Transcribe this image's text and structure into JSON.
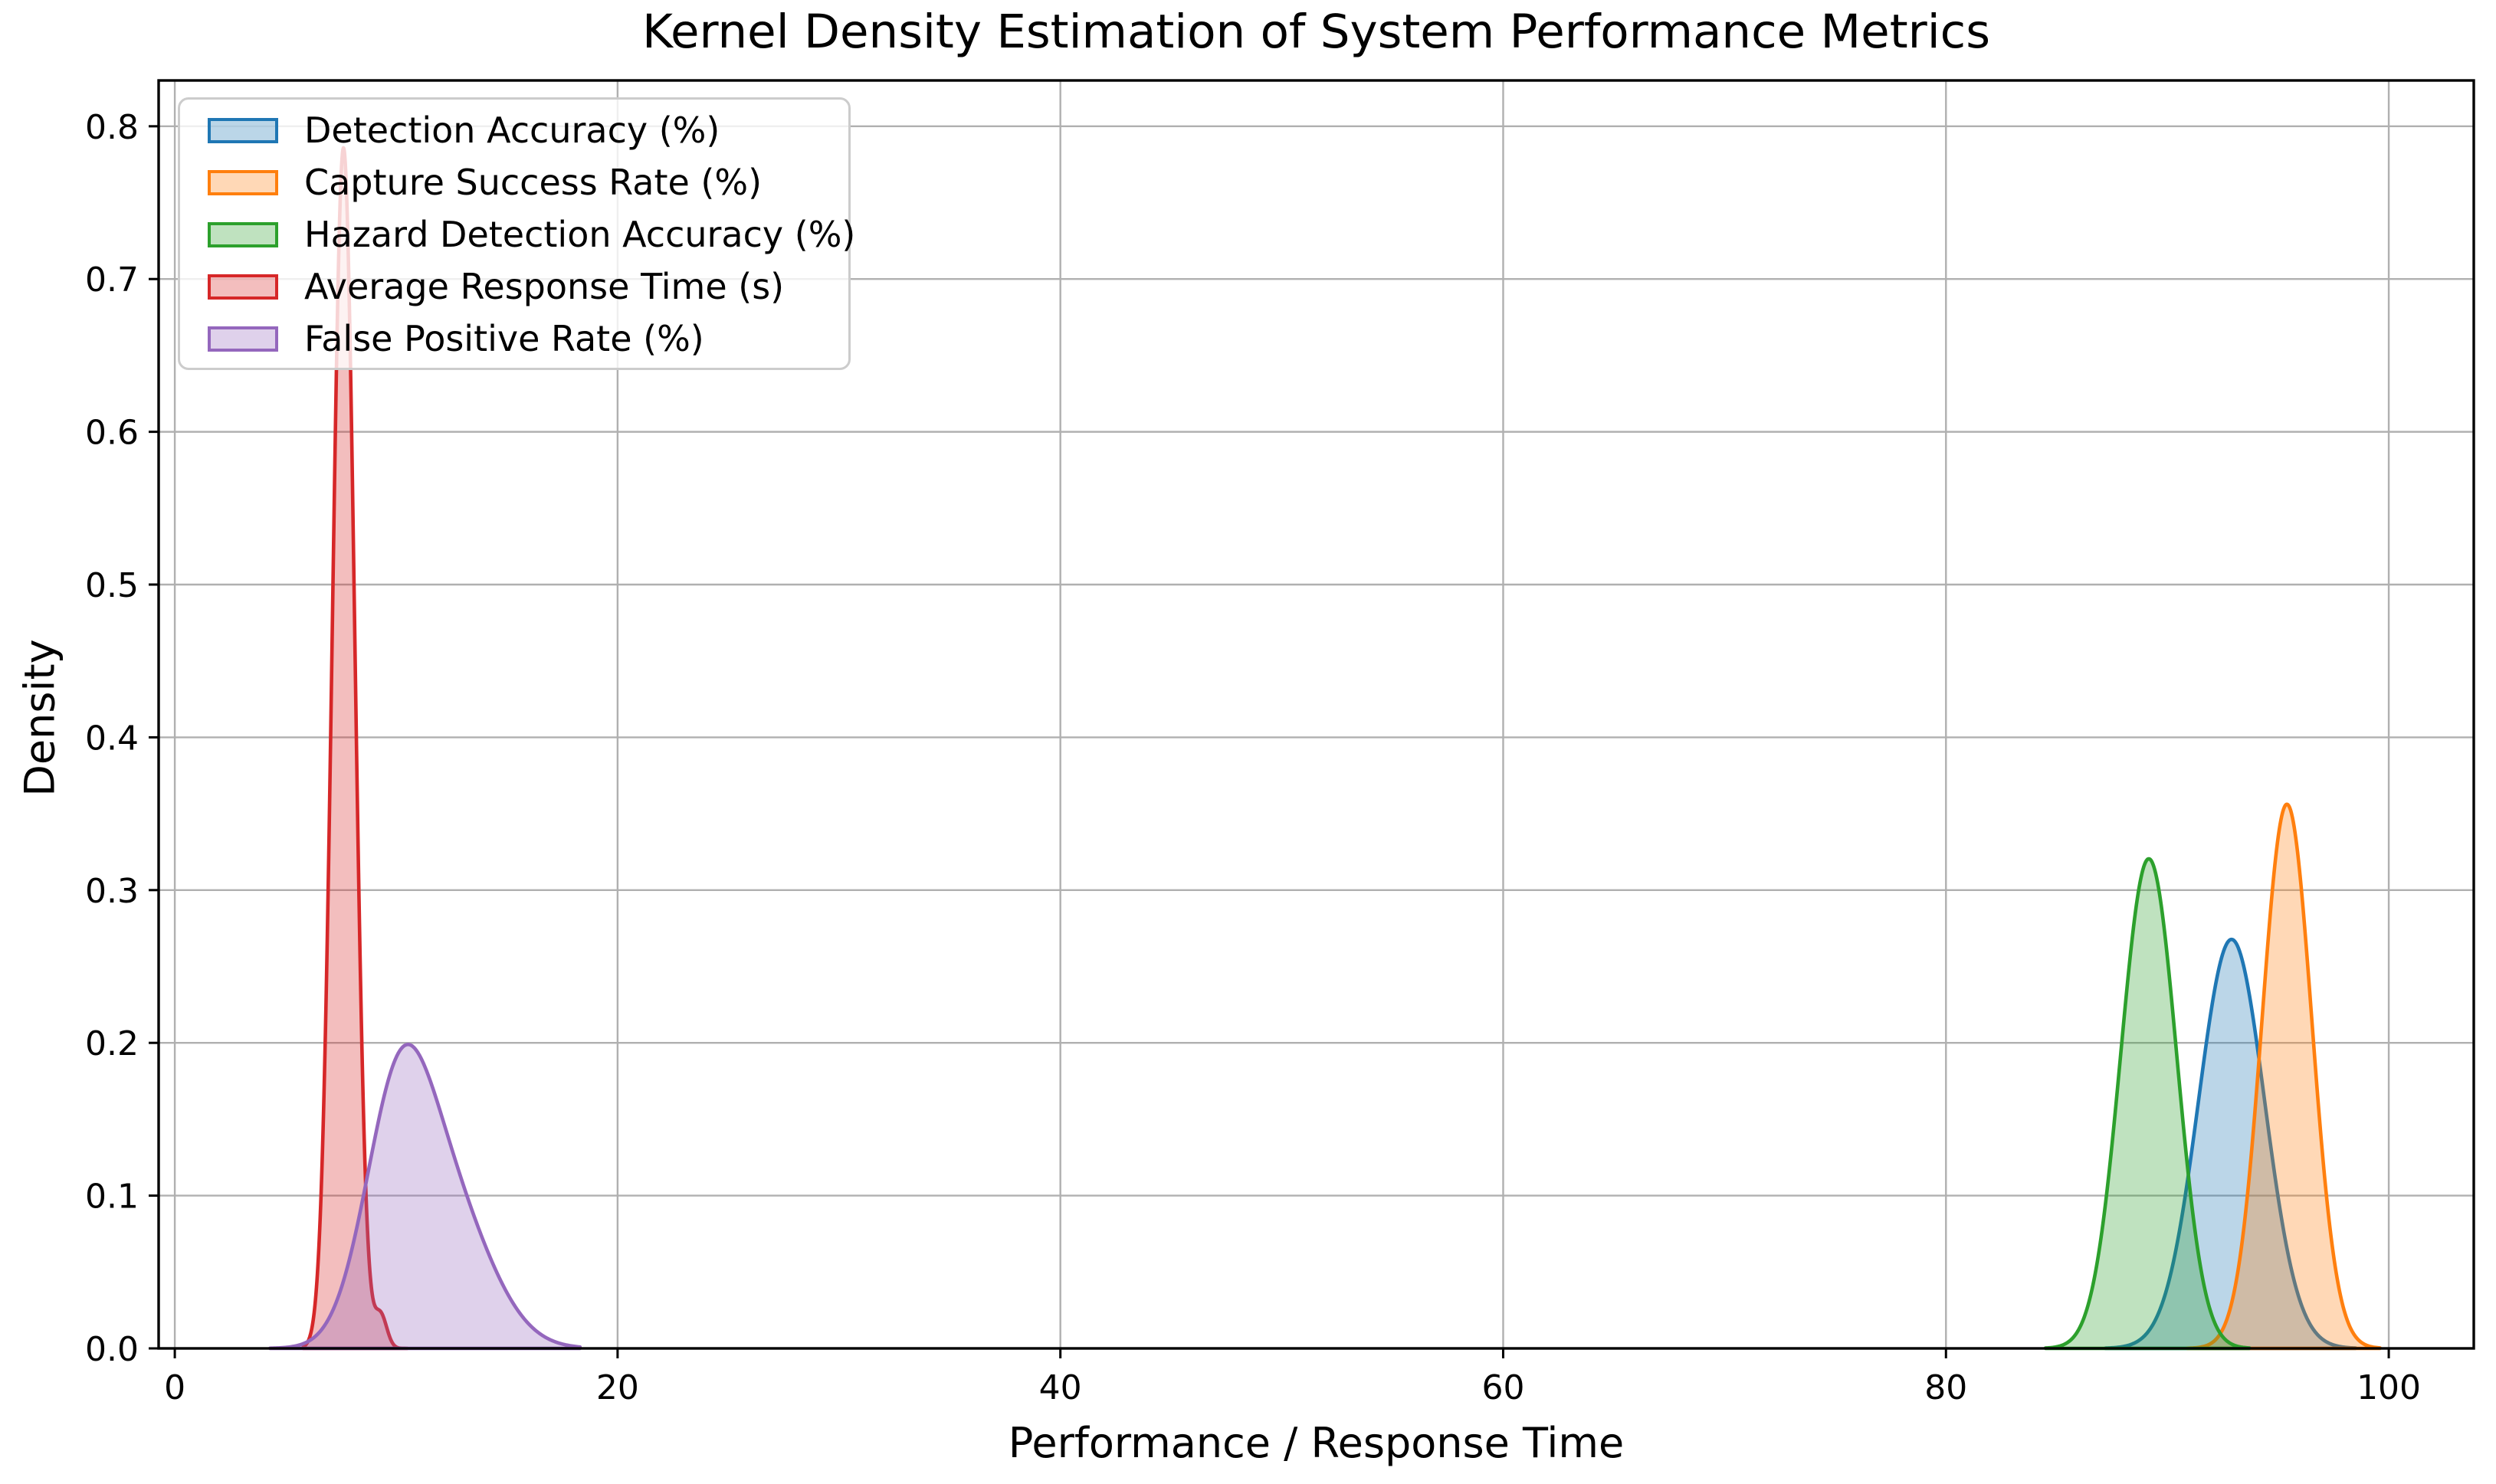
{
  "chart_data": {
    "type": "area",
    "subtype": "kde",
    "title": "Kernel Density Estimation of System Performance Metrics",
    "xlabel": "Performance / Response Time",
    "ylabel": "Density",
    "xlim": [
      -0.73,
      103.84
    ],
    "ylim": [
      0,
      0.83
    ],
    "xticks": {
      "values": [
        0,
        20,
        40,
        60,
        80,
        100
      ],
      "labels": [
        "0",
        "20",
        "40",
        "60",
        "80",
        "100"
      ]
    },
    "yticks": {
      "values": [
        0,
        0.1,
        0.2,
        0.3,
        0.4,
        0.5,
        0.6,
        0.7,
        0.8
      ],
      "labels": [
        "0.0",
        "0.1",
        "0.2",
        "0.3",
        "0.4",
        "0.5",
        "0.6",
        "0.7",
        "0.8"
      ]
    },
    "grid": true,
    "grid_color": "#b0b0b0",
    "axis_color": "#000000",
    "background_color": "#ffffff",
    "legend_position": "upper left",
    "fill_alpha": 0.3,
    "series": [
      {
        "name": "Detection Accuracy (%)",
        "color": "#1f77b4",
        "peak": {
          "x": 92.9,
          "density": 0.263
        },
        "range": [
          87.2,
          98.5
        ],
        "components": [
          {
            "mean": 92.9,
            "sigma": 1.49,
            "weight": 1.0
          }
        ]
      },
      {
        "name": "Capture Success Rate (%)",
        "color": "#ff7f0e",
        "peak": {
          "x": 95.4,
          "density": 0.358
        },
        "range": [
          90.9,
          99.6
        ],
        "components": [
          {
            "mean": 95.4,
            "sigma": 1.12,
            "weight": 1.0
          }
        ]
      },
      {
        "name": "Hazard Detection Accuracy (%)",
        "color": "#2ca02c",
        "peak": {
          "x": 89.1,
          "density": 0.31
        },
        "range": [
          84.5,
          93.7
        ],
        "components": [
          {
            "mean": 88.6,
            "sigma": 1.13,
            "weight": 0.45
          },
          {
            "mean": 89.6,
            "sigma": 1.13,
            "weight": 0.55
          }
        ]
      },
      {
        "name": "Average Response Time (s)",
        "color": "#d62728",
        "peak": {
          "x": 7.6,
          "density": 0.79
        },
        "range": [
          5.8,
          10.5
        ],
        "components": [
          {
            "mean": 7.62,
            "sigma": 0.5,
            "weight": 0.985
          },
          {
            "mean": 9.3,
            "sigma": 0.28,
            "weight": 0.015
          }
        ]
      },
      {
        "name": "False Positive Rate (%)",
        "color": "#9467bd",
        "peak": {
          "x": 10.3,
          "density": 0.193
        },
        "range": [
          4.3,
          18.3
        ],
        "components": [
          {
            "mean": 10.05,
            "sigma": 1.5,
            "weight": 0.52
          },
          {
            "mean": 12.2,
            "sigma": 2.0,
            "weight": 0.48
          }
        ]
      }
    ]
  }
}
